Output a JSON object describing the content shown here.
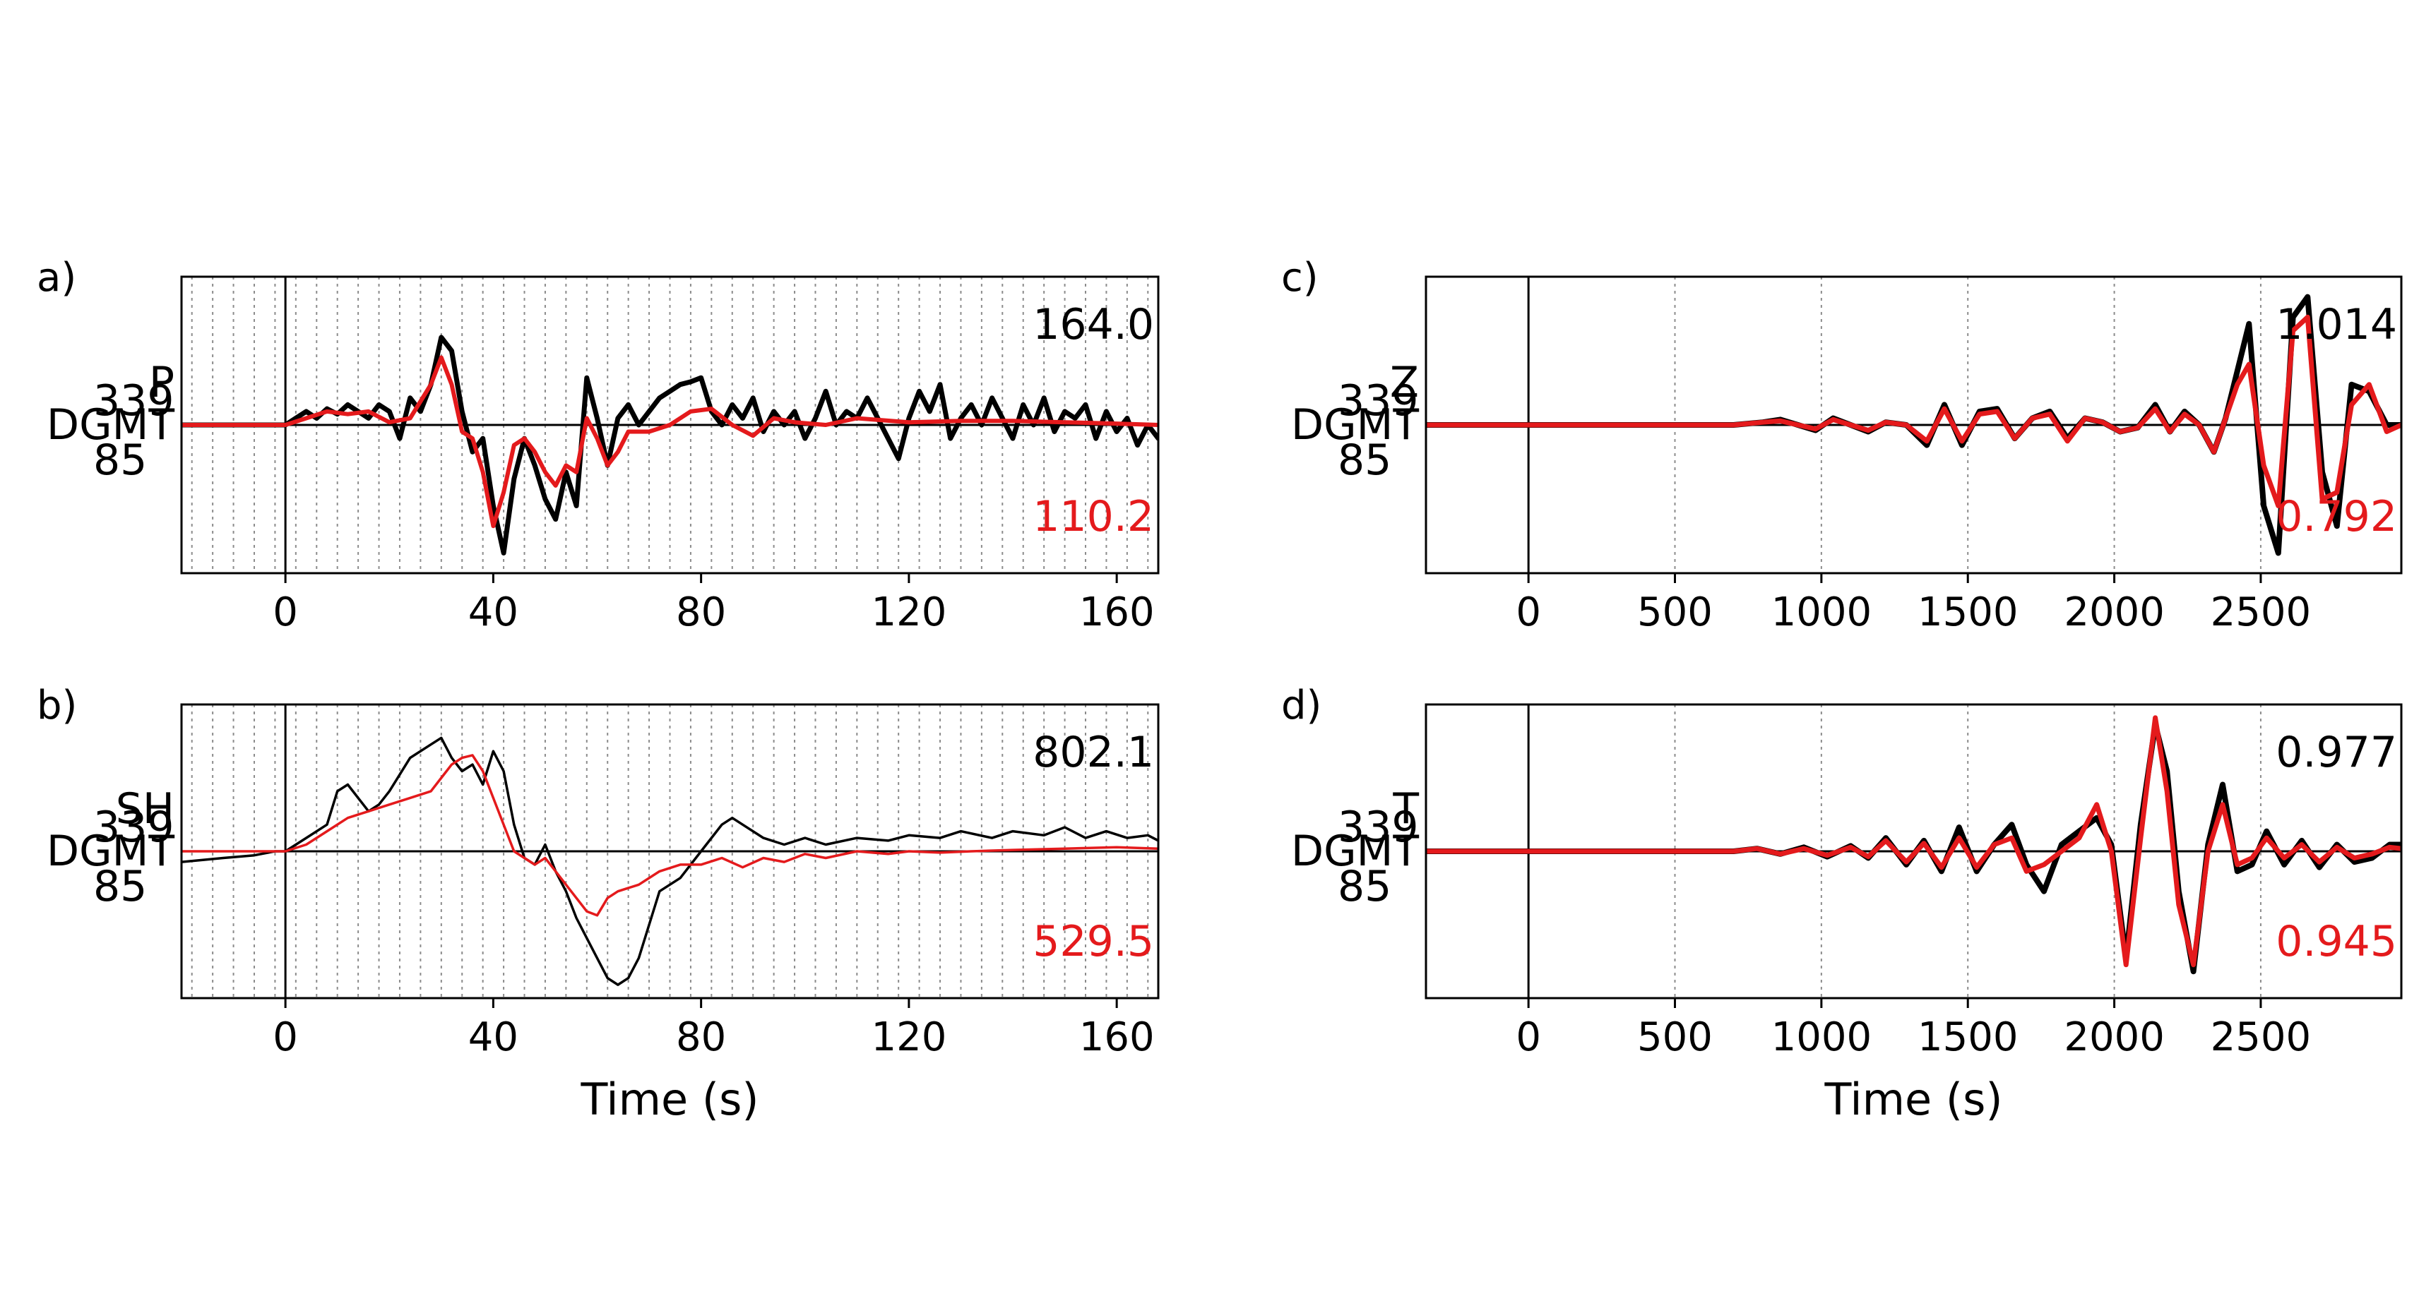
{
  "figure": {
    "colors": {
      "observed": "#000000",
      "synthetic": "#e41a1c",
      "grid": "#8c8c8c"
    },
    "xlabel": "Time (s)"
  },
  "chart_data": [
    {
      "panel_label": "a)",
      "type": "line",
      "phase": "P",
      "station": "DGMT",
      "azimuth": "339",
      "distance": "85",
      "amp_obs": "164.0",
      "amp_syn": "110.2",
      "xlabel": "",
      "xlim": [
        -20,
        168
      ],
      "xticks": [
        "0",
        "40",
        "80",
        "120",
        "160"
      ],
      "xtick_values": [
        0,
        40,
        80,
        120,
        160
      ],
      "grid_x": [
        -18,
        -14,
        -10,
        -6,
        -2,
        2,
        6,
        10,
        14,
        18,
        22,
        26,
        30,
        34,
        38,
        42,
        46,
        50,
        54,
        58,
        62,
        66,
        70,
        74,
        78,
        82,
        86,
        90,
        94,
        98,
        102,
        106,
        110,
        114,
        118,
        122,
        126,
        130,
        134,
        138,
        142,
        146,
        150,
        154,
        158,
        162,
        166
      ],
      "ylim": [
        -1.1,
        1.1
      ],
      "line_widths": {
        "observed": 7,
        "synthetic": 6
      },
      "series": [
        {
          "role": "observed",
          "x": [
            -20,
            0,
            2,
            4,
            6,
            8,
            10,
            12,
            14,
            16,
            18,
            20,
            22,
            24,
            26,
            28,
            30,
            32,
            34,
            36,
            38,
            40,
            42,
            44,
            46,
            48,
            50,
            52,
            54,
            56,
            58,
            60,
            62,
            64,
            66,
            68,
            70,
            72,
            74,
            76,
            78,
            80,
            82,
            84,
            86,
            88,
            90,
            92,
            94,
            96,
            98,
            100,
            102,
            104,
            106,
            108,
            110,
            112,
            114,
            116,
            118,
            120,
            122,
            124,
            126,
            128,
            130,
            132,
            134,
            136,
            138,
            140,
            142,
            144,
            146,
            148,
            150,
            152,
            154,
            156,
            158,
            160,
            162,
            164,
            166,
            168
          ],
          "y": [
            0,
            0,
            0.05,
            0.1,
            0.05,
            0.12,
            0.08,
            0.15,
            0.1,
            0.05,
            0.15,
            0.1,
            -0.1,
            0.2,
            0.1,
            0.3,
            0.65,
            0.55,
            0.1,
            -0.2,
            -0.1,
            -0.6,
            -0.95,
            -0.4,
            -0.1,
            -0.3,
            -0.55,
            -0.7,
            -0.35,
            -0.6,
            0.35,
            0.05,
            -0.3,
            0.05,
            0.15,
            0.0,
            0.1,
            0.2,
            0.25,
            0.3,
            0.32,
            0.35,
            0.1,
            0.0,
            0.15,
            0.05,
            0.2,
            -0.05,
            0.1,
            0.0,
            0.1,
            -0.1,
            0.05,
            0.25,
            0.0,
            0.1,
            0.05,
            0.2,
            0.05,
            -0.1,
            -0.25,
            0.05,
            0.25,
            0.1,
            0.3,
            -0.1,
            0.05,
            0.15,
            0.0,
            0.2,
            0.05,
            -0.1,
            0.15,
            0.0,
            0.2,
            -0.05,
            0.1,
            0.05,
            0.15,
            -0.1,
            0.1,
            -0.05,
            0.05,
            -0.15,
            0.0,
            -0.1
          ]
        },
        {
          "role": "synthetic",
          "x": [
            -20,
            0,
            4,
            8,
            12,
            16,
            20,
            24,
            28,
            30,
            32,
            34,
            36,
            38,
            40,
            42,
            44,
            46,
            48,
            50,
            52,
            54,
            56,
            58,
            60,
            62,
            64,
            66,
            70,
            74,
            78,
            82,
            86,
            90,
            94,
            98,
            104,
            110,
            120,
            130,
            140,
            150,
            160,
            168
          ],
          "y": [
            0,
            0,
            0.05,
            0.1,
            0.08,
            0.1,
            0.02,
            0.05,
            0.3,
            0.5,
            0.3,
            -0.05,
            -0.1,
            -0.35,
            -0.75,
            -0.5,
            -0.15,
            -0.1,
            -0.2,
            -0.35,
            -0.45,
            -0.3,
            -0.35,
            0.05,
            -0.1,
            -0.3,
            -0.2,
            -0.05,
            -0.05,
            0.0,
            0.1,
            0.12,
            0.0,
            -0.08,
            0.05,
            0.02,
            0.0,
            0.05,
            0.02,
            0.03,
            0.03,
            0.02,
            0.01,
            0.0
          ]
        }
      ]
    },
    {
      "panel_label": "b)",
      "type": "line",
      "phase": "SH",
      "station": "DGMT",
      "azimuth": "339",
      "distance": "85",
      "amp_obs": "802.1",
      "amp_syn": "529.5",
      "xlabel": "Time (s)",
      "xlim": [
        -20,
        168
      ],
      "xticks": [
        "0",
        "40",
        "80",
        "120",
        "160"
      ],
      "xtick_values": [
        0,
        40,
        80,
        120,
        160
      ],
      "grid_x": [
        -18,
        -14,
        -10,
        -6,
        -2,
        2,
        6,
        10,
        14,
        18,
        22,
        26,
        30,
        34,
        38,
        42,
        46,
        50,
        54,
        58,
        62,
        66,
        70,
        74,
        78,
        82,
        86,
        90,
        94,
        98,
        102,
        106,
        110,
        114,
        118,
        122,
        126,
        130,
        134,
        138,
        142,
        146,
        150,
        154,
        158,
        162,
        166
      ],
      "ylim": [
        -1.1,
        1.1
      ],
      "line_widths": {
        "observed": 3.5,
        "synthetic": 3.5
      },
      "series": [
        {
          "role": "observed",
          "x": [
            -20,
            -12,
            -6,
            -2,
            0,
            4,
            8,
            10,
            12,
            14,
            16,
            18,
            20,
            24,
            28,
            30,
            32,
            34,
            36,
            38,
            40,
            42,
            44,
            46,
            48,
            50,
            52,
            54,
            56,
            58,
            60,
            62,
            64,
            66,
            68,
            70,
            72,
            76,
            80,
            84,
            86,
            88,
            92,
            96,
            100,
            104,
            110,
            116,
            120,
            126,
            130,
            136,
            140,
            146,
            150,
            154,
            158,
            162,
            166,
            168
          ],
          "y": [
            -0.08,
            -0.05,
            -0.03,
            0.0,
            0.0,
            0.1,
            0.2,
            0.45,
            0.5,
            0.4,
            0.3,
            0.35,
            0.45,
            0.7,
            0.8,
            0.85,
            0.7,
            0.6,
            0.65,
            0.5,
            0.75,
            0.6,
            0.2,
            -0.05,
            -0.1,
            0.05,
            -0.15,
            -0.3,
            -0.5,
            -0.65,
            -0.8,
            -0.95,
            -1.0,
            -0.95,
            -0.8,
            -0.55,
            -0.3,
            -0.2,
            0.0,
            0.2,
            0.25,
            0.2,
            0.1,
            0.05,
            0.1,
            0.05,
            0.1,
            0.08,
            0.12,
            0.1,
            0.15,
            0.1,
            0.15,
            0.12,
            0.18,
            0.1,
            0.15,
            0.1,
            0.12,
            0.08
          ]
        },
        {
          "role": "synthetic",
          "x": [
            -20,
            0,
            4,
            8,
            12,
            16,
            20,
            24,
            28,
            30,
            32,
            34,
            36,
            38,
            40,
            42,
            44,
            46,
            48,
            50,
            52,
            54,
            56,
            58,
            60,
            62,
            64,
            68,
            72,
            76,
            80,
            84,
            88,
            92,
            96,
            100,
            104,
            110,
            116,
            120,
            126,
            132,
            140,
            150,
            160,
            168
          ],
          "y": [
            0,
            0,
            0.05,
            0.15,
            0.25,
            0.3,
            0.35,
            0.4,
            0.45,
            0.55,
            0.65,
            0.7,
            0.72,
            0.6,
            0.4,
            0.2,
            0.0,
            -0.05,
            -0.1,
            -0.05,
            -0.15,
            -0.25,
            -0.35,
            -0.45,
            -0.48,
            -0.35,
            -0.3,
            -0.25,
            -0.15,
            -0.1,
            -0.1,
            -0.05,
            -0.12,
            -0.05,
            -0.08,
            -0.02,
            -0.05,
            0.0,
            -0.02,
            0.0,
            -0.01,
            0.0,
            0.01,
            0.02,
            0.03,
            0.02
          ]
        }
      ]
    },
    {
      "panel_label": "c)",
      "type": "line",
      "phase": "Z",
      "station": "DGMT",
      "azimuth": "339",
      "distance": "85",
      "amp_obs": "1.014",
      "amp_syn": "0.792",
      "xlabel": "",
      "xlim": [
        -350,
        2980
      ],
      "xticks": [
        "0",
        "500",
        "1000",
        "1500",
        "2000",
        "2500"
      ],
      "xtick_values": [
        0,
        500,
        1000,
        1500,
        2000,
        2500
      ],
      "grid_x": [
        500,
        1000,
        1500,
        2000,
        2500
      ],
      "ylim": [
        -1.1,
        1.1
      ],
      "line_widths": {
        "observed": 8,
        "synthetic": 7
      },
      "series": [
        {
          "role": "observed",
          "x": [
            -350,
            0,
            600,
            700,
            800,
            860,
            920,
            980,
            1040,
            1100,
            1160,
            1220,
            1290,
            1360,
            1420,
            1480,
            1540,
            1600,
            1660,
            1720,
            1780,
            1840,
            1900,
            1960,
            2020,
            2080,
            2140,
            2190,
            2240,
            2290,
            2340,
            2380,
            2420,
            2460,
            2510,
            2560,
            2610,
            2660,
            2710,
            2760,
            2810,
            2870,
            2930,
            2980
          ],
          "y": [
            0,
            0,
            0,
            0.0,
            0.02,
            0.04,
            0.0,
            -0.04,
            0.05,
            0.0,
            -0.05,
            0.02,
            0.0,
            -0.15,
            0.15,
            -0.15,
            0.1,
            0.12,
            -0.1,
            0.05,
            0.1,
            -0.1,
            0.05,
            0.02,
            -0.05,
            -0.02,
            0.15,
            -0.05,
            0.1,
            0.0,
            -0.2,
            0.05,
            0.4,
            0.75,
            -0.6,
            -0.95,
            0.8,
            0.95,
            -0.35,
            -0.75,
            0.3,
            0.25,
            0.0,
            0.0
          ]
        },
        {
          "role": "synthetic",
          "x": [
            -350,
            0,
            600,
            700,
            800,
            860,
            920,
            980,
            1040,
            1100,
            1160,
            1220,
            1290,
            1360,
            1420,
            1480,
            1540,
            1600,
            1660,
            1720,
            1780,
            1840,
            1900,
            1960,
            2020,
            2080,
            2140,
            2190,
            2240,
            2290,
            2340,
            2380,
            2420,
            2460,
            2510,
            2560,
            2610,
            2660,
            2710,
            2760,
            2810,
            2870,
            2930,
            2980
          ],
          "y": [
            0,
            0,
            0,
            0.0,
            0.02,
            0.03,
            0.0,
            -0.03,
            0.04,
            0.0,
            -0.04,
            0.02,
            0.0,
            -0.12,
            0.12,
            -0.12,
            0.08,
            0.1,
            -0.1,
            0.05,
            0.08,
            -0.12,
            0.05,
            0.02,
            -0.05,
            -0.02,
            0.12,
            -0.05,
            0.08,
            0.0,
            -0.2,
            0.05,
            0.3,
            0.45,
            -0.3,
            -0.6,
            0.7,
            0.8,
            -0.55,
            -0.5,
            0.15,
            0.3,
            -0.05,
            0.0
          ]
        }
      ]
    },
    {
      "panel_label": "d)",
      "type": "line",
      "phase": "T",
      "station": "DGMT",
      "azimuth": "339",
      "distance": "85",
      "amp_obs": "0.977",
      "amp_syn": "0.945",
      "xlabel": "Time (s)",
      "xlim": [
        -350,
        2980
      ],
      "xticks": [
        "0",
        "500",
        "1000",
        "1500",
        "2000",
        "2500"
      ],
      "xtick_values": [
        0,
        500,
        1000,
        1500,
        2000,
        2500
      ],
      "grid_x": [
        500,
        1000,
        1500,
        2000,
        2500
      ],
      "ylim": [
        -1.1,
        1.1
      ],
      "line_widths": {
        "observed": 8,
        "synthetic": 7
      },
      "series": [
        {
          "role": "observed",
          "x": [
            -350,
            0,
            600,
            700,
            780,
            860,
            940,
            1020,
            1100,
            1160,
            1220,
            1290,
            1350,
            1410,
            1470,
            1530,
            1590,
            1650,
            1700,
            1760,
            1820,
            1880,
            1940,
            1990,
            2040,
            2090,
            2140,
            2180,
            2220,
            2270,
            2320,
            2370,
            2420,
            2470,
            2520,
            2580,
            2640,
            2700,
            2760,
            2820,
            2880,
            2940,
            2980
          ],
          "y": [
            0,
            0,
            0,
            0.0,
            0.02,
            -0.02,
            0.03,
            -0.04,
            0.04,
            -0.05,
            0.1,
            -0.1,
            0.08,
            -0.15,
            0.18,
            -0.15,
            0.05,
            0.2,
            -0.1,
            -0.3,
            0.05,
            0.15,
            0.25,
            0.05,
            -0.8,
            0.2,
            0.95,
            0.6,
            -0.3,
            -0.9,
            0.05,
            0.5,
            -0.15,
            -0.1,
            0.15,
            -0.1,
            0.08,
            -0.12,
            0.05,
            -0.08,
            -0.05,
            0.05,
            0.05
          ]
        },
        {
          "role": "synthetic",
          "x": [
            -350,
            0,
            600,
            700,
            780,
            860,
            940,
            1020,
            1100,
            1160,
            1220,
            1290,
            1350,
            1410,
            1470,
            1530,
            1590,
            1650,
            1700,
            1760,
            1820,
            1880,
            1940,
            1990,
            2040,
            2090,
            2140,
            2180,
            2220,
            2270,
            2320,
            2370,
            2420,
            2470,
            2520,
            2580,
            2640,
            2700,
            2760,
            2820,
            2880,
            2940,
            2980
          ],
          "y": [
            0,
            0,
            0,
            0.0,
            0.02,
            -0.02,
            0.02,
            -0.03,
            0.03,
            -0.04,
            0.08,
            -0.08,
            0.06,
            -0.12,
            0.1,
            -0.12,
            0.05,
            0.1,
            -0.15,
            -0.1,
            0.0,
            0.1,
            0.35,
            0.0,
            -0.85,
            0.1,
            1.0,
            0.45,
            -0.4,
            -0.85,
            0.0,
            0.35,
            -0.1,
            -0.05,
            0.1,
            -0.05,
            0.05,
            -0.08,
            0.03,
            -0.05,
            -0.02,
            0.03,
            0.02
          ]
        }
      ]
    }
  ]
}
